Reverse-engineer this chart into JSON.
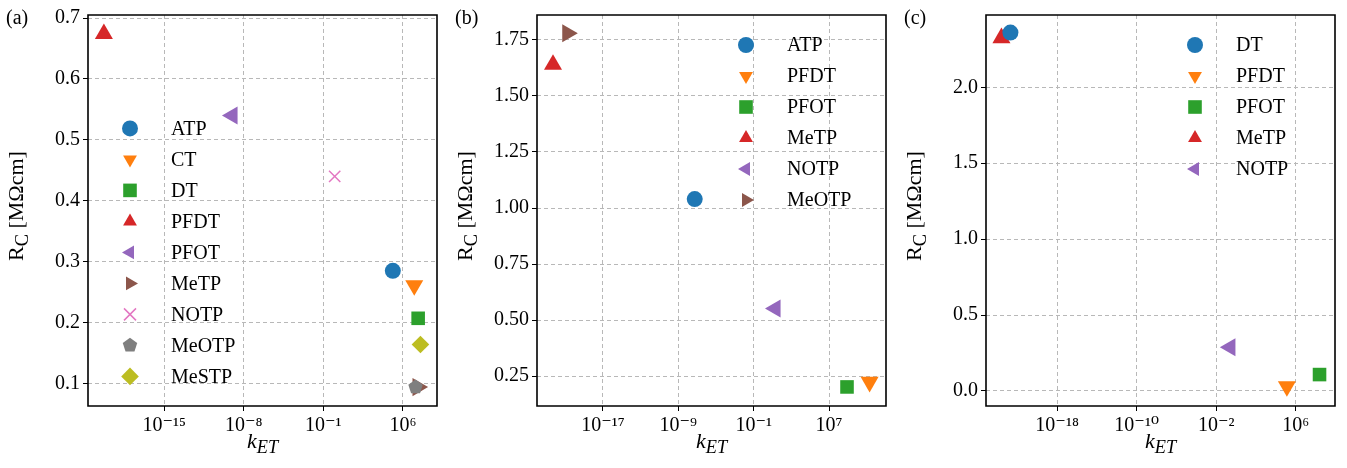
{
  "chart_data": [
    {
      "type": "scatter",
      "title": "(a)",
      "xlabel": "k$_{ET}$",
      "ylabel": "R$_{C}$ [MΩcm]",
      "log": "x",
      "grid": true,
      "legend": "center left",
      "xlim": [
        2e-22,
        1000000000.0
      ],
      "ylim": [
        0.063,
        0.705
      ],
      "xticks": [
        {
          "value": 1e-15,
          "label": "10⁻¹⁵"
        },
        {
          "value": 1e-08,
          "label": "10⁻⁸"
        },
        {
          "value": 0.1,
          "label": "10⁻¹"
        },
        {
          "value": 1000000.0,
          "label": "10⁶"
        }
      ],
      "yticks": [
        0.1,
        0.2,
        0.3,
        0.4,
        0.5,
        0.6,
        0.7
      ],
      "series": [
        {
          "name": "ATP",
          "color": "#1f77b4",
          "marker": "circle",
          "x": [
            130000.0
          ],
          "values": [
            0.285
          ]
        },
        {
          "name": "CT",
          "color": "#ff7f0e",
          "marker": "triangle-down",
          "x": [
            10000000.0
          ],
          "values": [
            0.261
          ]
        },
        {
          "name": "DT",
          "color": "#2ca02c",
          "marker": "square",
          "x": [
            22000000.0
          ],
          "values": [
            0.207
          ]
        },
        {
          "name": "PFDT",
          "color": "#d62728",
          "marker": "triangle",
          "x": [
            5e-21
          ],
          "values": [
            0.674
          ]
        },
        {
          "name": "PFOT",
          "color": "#9467bd",
          "marker": "triangle-left",
          "x": [
            1e-09
          ],
          "values": [
            0.54
          ]
        },
        {
          "name": "MeTP",
          "color": "#8c564b",
          "marker": "triangle-right",
          "x": [
            20000000.0
          ],
          "values": [
            0.094
          ]
        },
        {
          "name": "NOTP",
          "color": "#e377c2",
          "marker": "cross",
          "x": [
            1
          ],
          "values": [
            0.44
          ]
        },
        {
          "name": "MeOTP",
          "color": "#7f7f7f",
          "x": [
            13000000.0
          ],
          "values": [
            0.094
          ]
        },
        {
          "name": "MeSTP",
          "color": "#bcbd22",
          "marker": "diamond",
          "x": [
            35000000.0
          ],
          "values": [
            0.164
          ]
        }
      ]
    },
    {
      "type": "scatter",
      "title": "(b)",
      "xlabel": "k$_{ET}$",
      "ylabel": "R$_{C}$ [MΩcm]",
      "log": "x",
      "grid": true,
      "legend": "top right",
      "xlim": [
        1e-24,
        11000000000000.0
      ],
      "ylim": [
        0.117,
        1.861
      ],
      "xticks": [
        {
          "value": 1e-17,
          "label": "10⁻¹⁷"
        },
        {
          "value": 1e-09,
          "label": "10⁻⁹"
        },
        {
          "value": 0.1,
          "label": "10⁻¹"
        },
        {
          "value": 10000000.0,
          "label": "10⁷"
        }
      ],
      "yticks": [
        0.25,
        {
          "value": 0.5,
          "label": "0.50"
        },
        0.75,
        {
          "value": 1,
          "label": "1.00"
        },
        1.25,
        {
          "value": 1.5,
          "label": "1.50"
        },
        1.75
      ],
      "series": [
        {
          "name": "ATP",
          "color": "#1f77b4",
          "marker": "circle",
          "x": [
            5.5e-08
          ],
          "values": [
            1.04
          ]
        },
        {
          "name": "PFDT",
          "color": "#ff7f0e",
          "marker": "triangle-down",
          "x": [
            200000000000.0
          ],
          "values": [
            0.224
          ]
        },
        {
          "name": "PFOT",
          "color": "#2ca02c",
          "marker": "square",
          "x": [
            800000000.0
          ],
          "values": [
            0.202
          ]
        },
        {
          "name": "MeTP",
          "color": "#d62728",
          "marker": "triangle",
          "x": [
            5e-23
          ],
          "values": [
            1.64
          ]
        },
        {
          "name": "NOTP",
          "color": "#9467bd",
          "marker": "triangle-left",
          "x": [
            20
          ],
          "values": [
            0.552
          ]
        },
        {
          "name": "MeOTP",
          "color": "#8c564b",
          "marker": "triangle-right",
          "x": [
            1.7e-21
          ],
          "values": [
            1.78
          ]
        }
      ]
    },
    {
      "type": "scatter",
      "title": "(c)",
      "xlabel": "k$_{ET}$",
      "ylabel": "R$_{C}$ [MΩcm]",
      "log": "x",
      "grid": true,
      "legend": "top right",
      "xlim": [
        7e-26,
        9000000000.0
      ],
      "ylim": [
        -0.099,
        2.476
      ],
      "xticks": [
        {
          "value": 1e-18,
          "label": "10⁻¹⁸"
        },
        {
          "value": 1e-10,
          "label": "10⁻¹⁰"
        },
        {
          "value": 0.01,
          "label": "10⁻²"
        },
        {
          "value": 1000000.0,
          "label": "10⁶"
        }
      ],
      "yticks": [
        {
          "value": 0,
          "label": "0.0"
        },
        0.5,
        {
          "value": 1,
          "label": "1.0"
        },
        1.5,
        {
          "value": 2,
          "label": "2.0"
        }
      ],
      "series": [
        {
          "name": "DT",
          "color": "#1f77b4",
          "marker": "circle",
          "x": [
            2e-23
          ],
          "values": [
            2.36
          ]
        },
        {
          "name": "PFDT",
          "color": "#ff7f0e",
          "marker": "triangle-down",
          "x": [
            130000.0
          ],
          "values": [
            0.03
          ]
        },
        {
          "name": "PFOT",
          "color": "#2ca02c",
          "marker": "square",
          "x": [
            250000000.0
          ],
          "values": [
            0.108
          ]
        },
        {
          "name": "MeTP",
          "color": "#d62728",
          "marker": "triangle",
          "x": [
            2.5e-24
          ],
          "values": [
            2.325
          ]
        },
        {
          "name": "NOTP",
          "color": "#9467bd",
          "marker": "triangle-left",
          "x": [
            0.26
          ],
          "values": [
            0.288
          ]
        }
      ]
    }
  ]
}
